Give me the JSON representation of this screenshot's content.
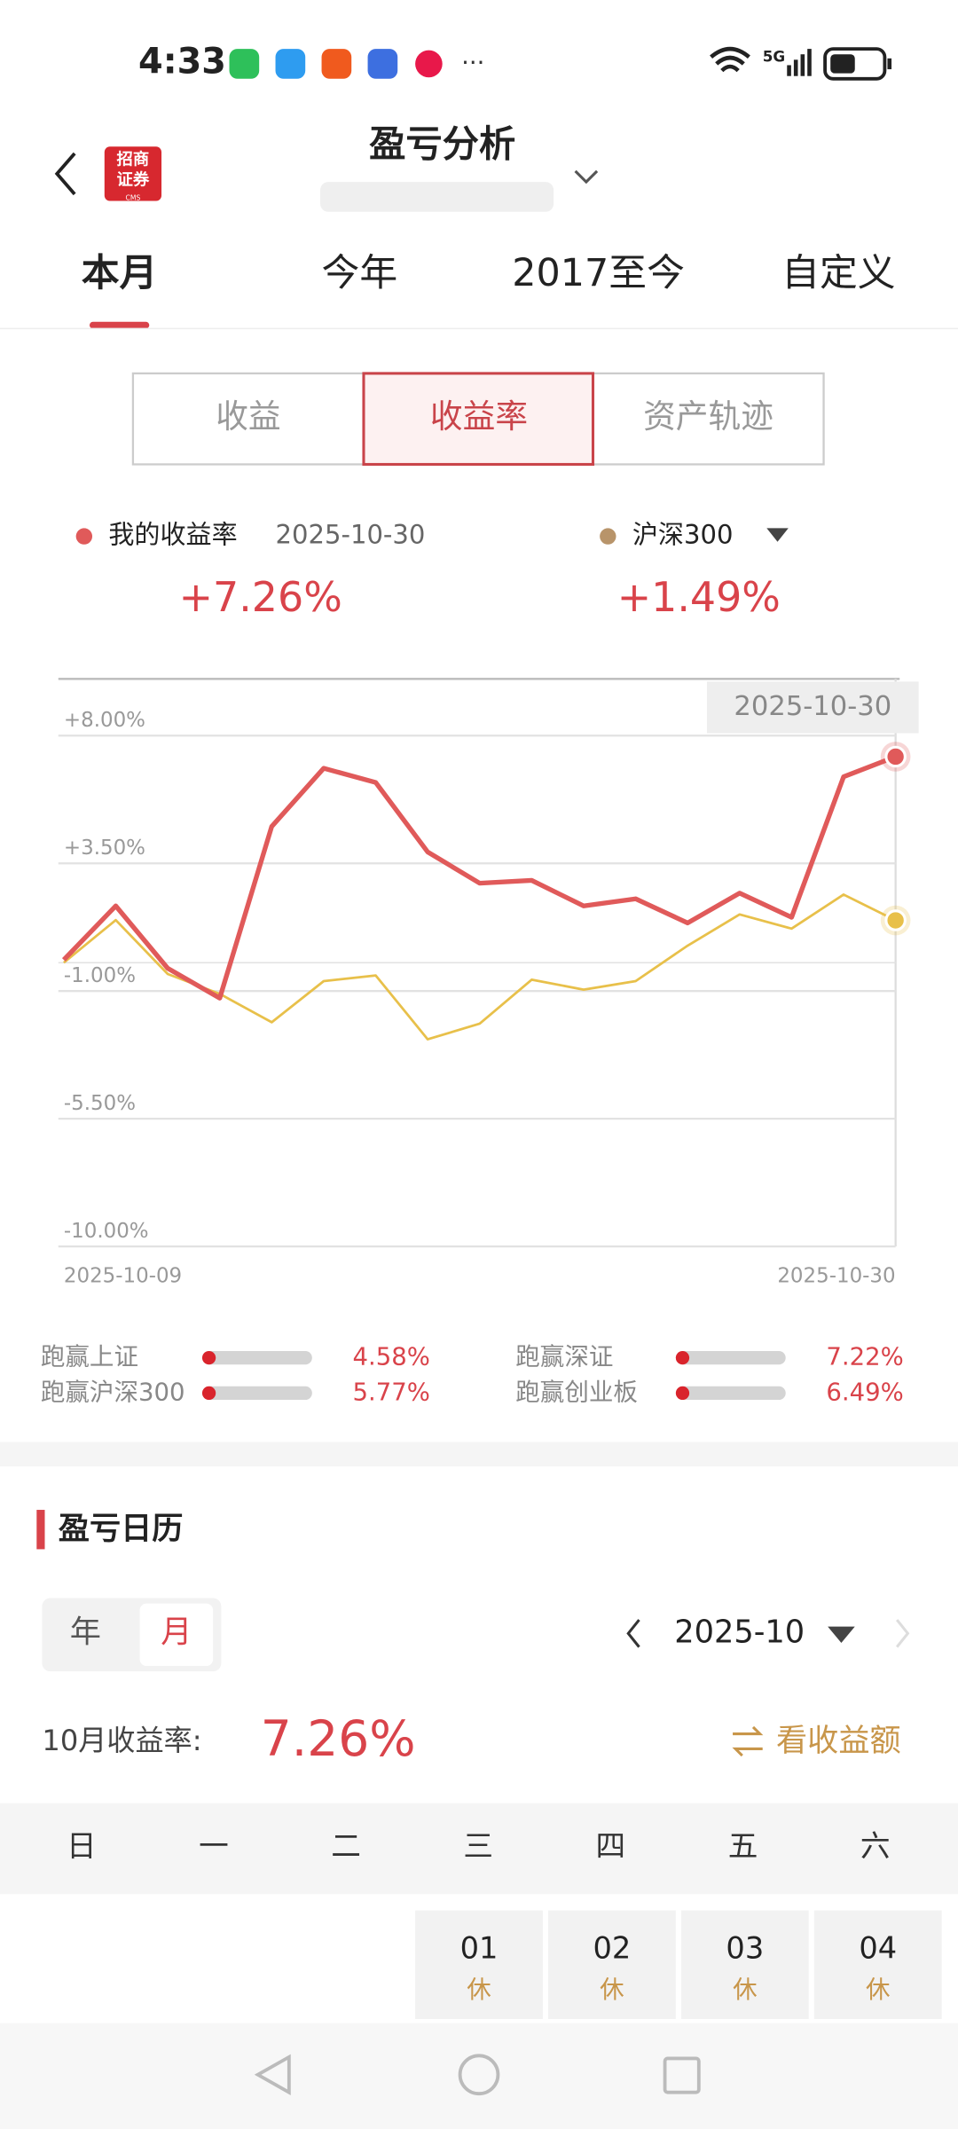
{
  "status_bar": {
    "time": "4:33",
    "network": "5G"
  },
  "logo": {
    "lines": [
      "招商",
      "证券"
    ],
    "sub": "CMS"
  },
  "header": {
    "title": "盈亏分析"
  },
  "tabs": [
    "本月",
    "今年",
    "2017至今",
    "自定义"
  ],
  "segments": [
    "收益",
    "收益率",
    "资产轨迹"
  ],
  "summary": {
    "date": "2025-10-30",
    "values": [
      "+7.26%",
      "+1.49%"
    ]
  },
  "chart_data": {
    "type": "line",
    "categories": [
      "2025-10-09",
      null,
      null,
      null,
      null,
      null,
      null,
      null,
      null,
      null,
      null,
      null,
      null,
      null,
      null,
      null,
      "2025-10-30"
    ],
    "series": [
      {
        "name": "沪深300",
        "color": "#e8c04a",
        "legend_color": "#b8946a",
        "values": [
          0,
          1.5,
          -0.4,
          -1.1,
          -2.1,
          -0.65,
          -0.45,
          -2.7,
          -2.15,
          -0.6,
          -0.95,
          -0.65,
          0.6,
          1.7,
          1.2,
          2.4,
          1.49
        ]
      },
      {
        "name": "我的收益率",
        "color": "#e05a5a",
        "legend_color": "#e05a5a",
        "values": [
          0.1,
          2.0,
          -0.2,
          -1.25,
          4.8,
          6.85,
          6.35,
          3.9,
          2.8,
          2.9,
          2.0,
          2.25,
          1.4,
          2.45,
          1.6,
          6.55,
          7.26
        ]
      }
    ],
    "ylim": [
      -10,
      10
    ],
    "yticks": [
      {
        "value": 8,
        "label": "+8.00%"
      },
      {
        "value": 3.5,
        "label": "+3.50%"
      },
      {
        "value": -1,
        "label": "-1.00%"
      },
      {
        "value": -5.5,
        "label": "-5.50%"
      },
      {
        "value": -10,
        "label": "-10.00%"
      }
    ],
    "grid": true,
    "tooltip_date": "2025-10-30"
  },
  "outperform": [
    {
      "label": "跑赢上证",
      "value": "4.58%"
    },
    {
      "label": "跑赢沪深300",
      "value": "5.77%"
    },
    {
      "label": "跑赢深证",
      "value": "7.22%"
    },
    {
      "label": "跑赢创业板",
      "value": "6.49%"
    }
  ],
  "calendar": {
    "title": "盈亏日历",
    "modes": [
      "年",
      "月"
    ],
    "month": "2025-10",
    "return_label": "10月收益率:",
    "return_value": "7.26%",
    "switch": "看收益额",
    "weekdays": [
      "日",
      "一",
      "二",
      "三",
      "四",
      "五",
      "六"
    ],
    "days": [
      {
        "day": "01",
        "status": "休"
      },
      {
        "day": "02",
        "status": "休"
      },
      {
        "day": "03",
        "status": "休"
      },
      {
        "day": "04",
        "status": "休"
      }
    ]
  }
}
